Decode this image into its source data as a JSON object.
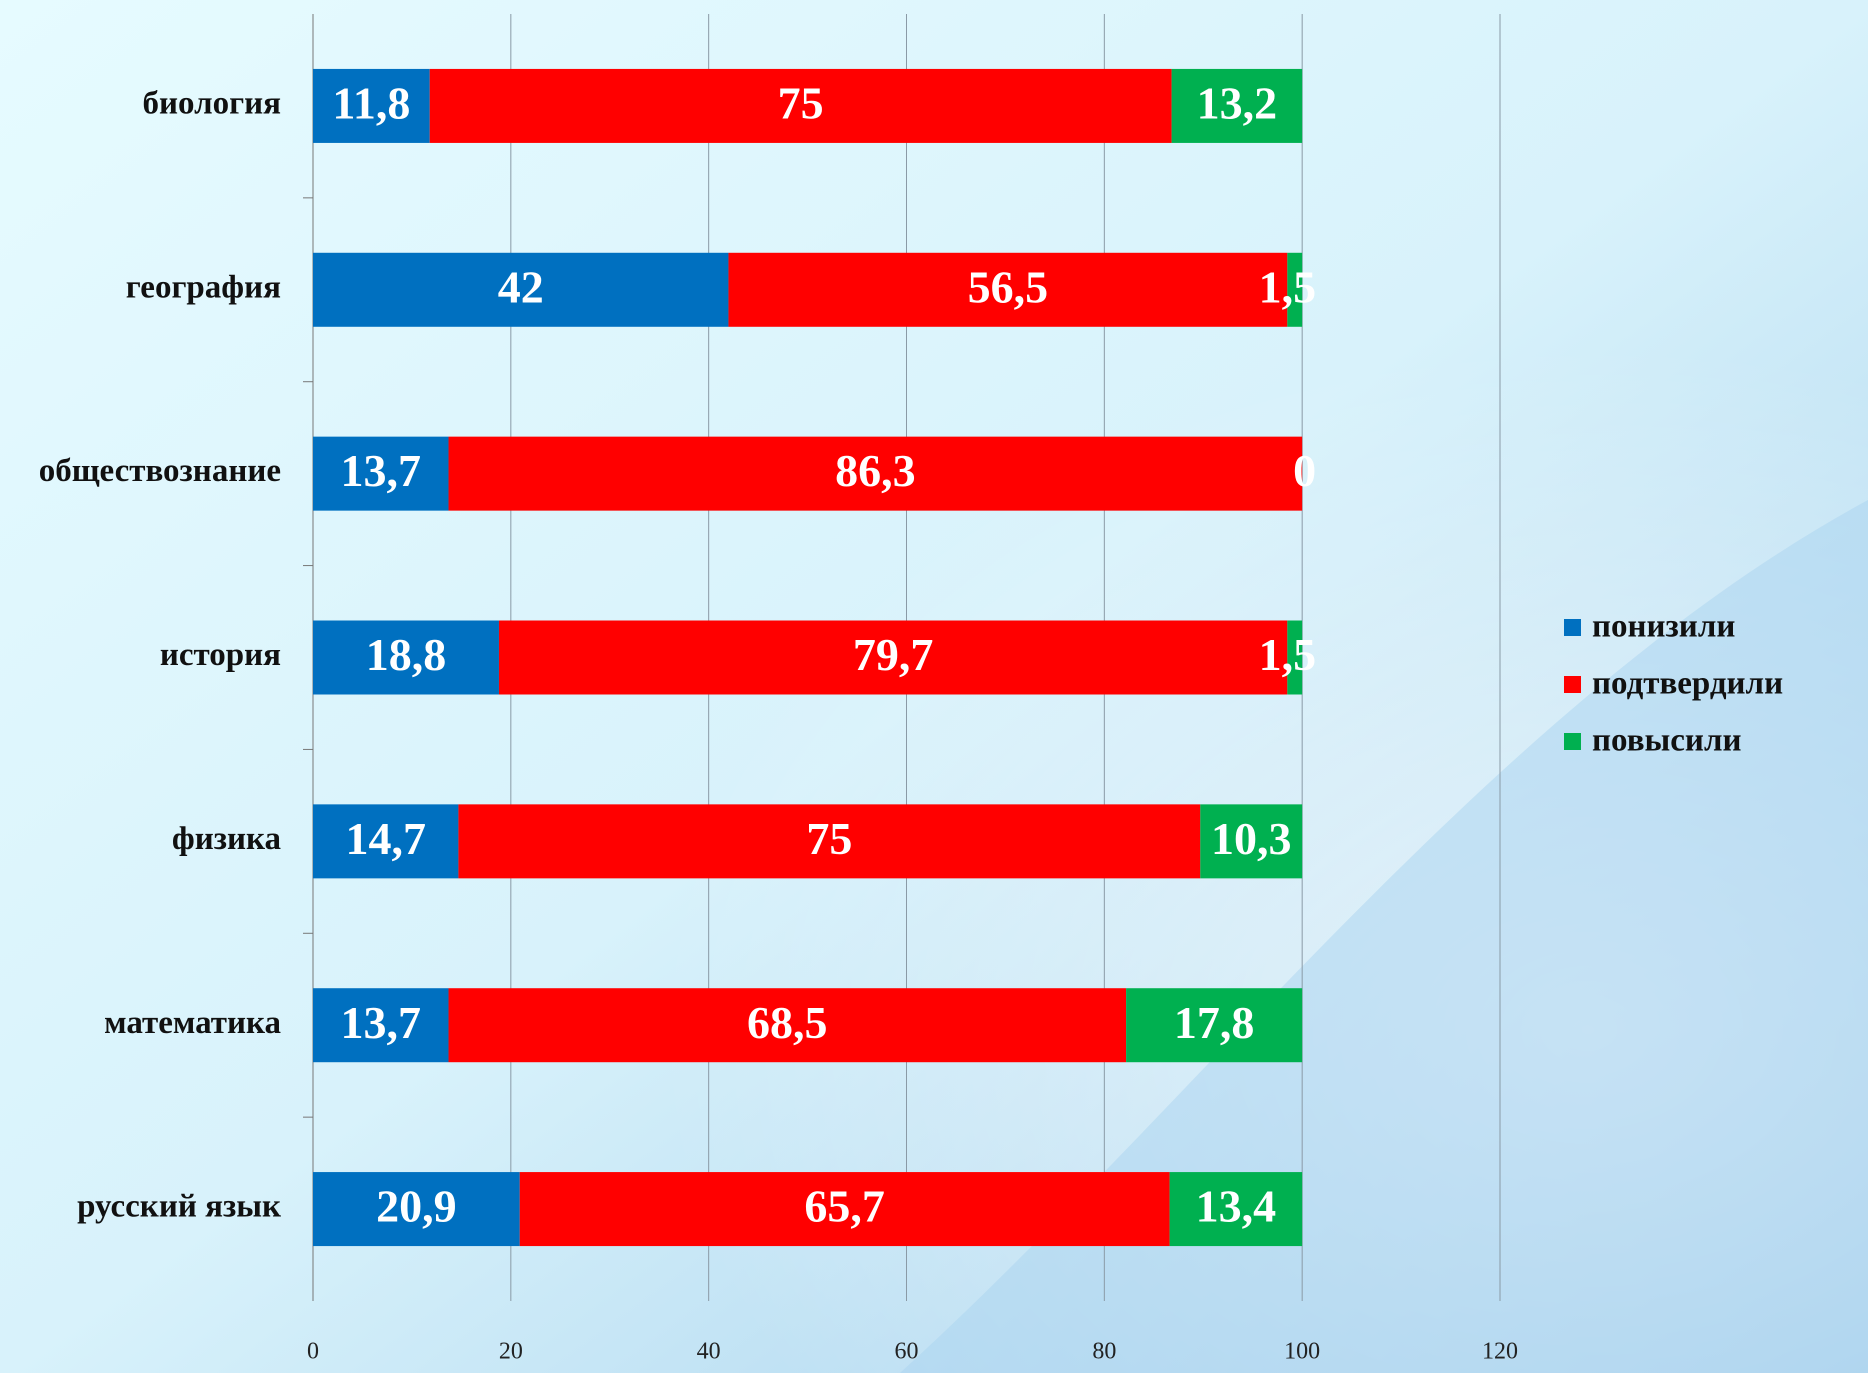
{
  "chart_data": {
    "type": "stacked-bar-horizontal",
    "categories": [
      "биология",
      "география",
      "обществознание",
      "история",
      "физика",
      "математика",
      "русский язык"
    ],
    "series": [
      {
        "name": "понизили",
        "color": "#0070c0",
        "values": [
          11.8,
          42,
          13.7,
          18.8,
          14.7,
          13.7,
          20.9
        ],
        "value_labels": [
          "11,8",
          "42",
          "13,7",
          "18,8",
          "14,7",
          "13,7",
          "20,9"
        ]
      },
      {
        "name": "подтвердили",
        "color": "#ff0000",
        "values": [
          75,
          56.5,
          86.3,
          79.7,
          75,
          68.5,
          65.7
        ],
        "value_labels": [
          "75",
          "56,5",
          "86,3",
          "79,7",
          "75",
          "68,5",
          "65,7"
        ]
      },
      {
        "name": "повысили",
        "color": "#00b050",
        "values": [
          13.2,
          1.5,
          0,
          1.5,
          10.3,
          17.8,
          13.4
        ],
        "value_labels": [
          "13,2",
          "1,5",
          "0",
          "1,5",
          "10,3",
          "17,8",
          "13,4"
        ]
      }
    ],
    "xlim": [
      0,
      120
    ],
    "xticks": [
      0,
      20,
      40,
      60,
      80,
      100,
      120
    ],
    "grid": true,
    "legend": "right"
  }
}
